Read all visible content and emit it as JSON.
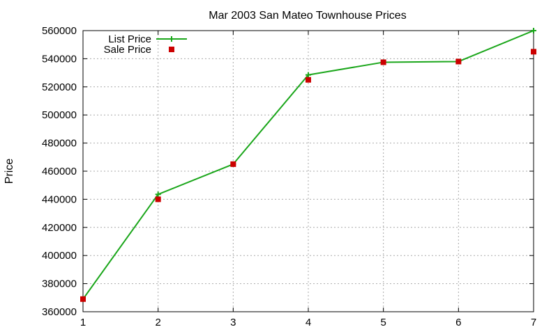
{
  "chart_data": {
    "type": "line",
    "title": "Mar 2003 San Mateo Townhouse Prices",
    "xlabel": "",
    "ylabel": "Price",
    "x": [
      1,
      2,
      3,
      4,
      5,
      6,
      7
    ],
    "xlim": [
      1,
      7
    ],
    "ylim": [
      360000,
      560000
    ],
    "yticks": [
      360000,
      380000,
      400000,
      420000,
      440000,
      460000,
      480000,
      500000,
      520000,
      540000,
      560000
    ],
    "xticks": [
      1,
      2,
      3,
      4,
      5,
      6,
      7
    ],
    "grid": true,
    "legend_position": "top-left",
    "series": [
      {
        "name": "List Price",
        "style": "line-with-plus-markers",
        "color": "#1aa61a",
        "values": [
          369000,
          443500,
          465000,
          528500,
          537500,
          538000,
          560000
        ]
      },
      {
        "name": "Sale Price",
        "style": "square-markers",
        "color": "#cc0000",
        "values": [
          369000,
          440000,
          465000,
          525000,
          537500,
          538000,
          545000
        ]
      }
    ]
  }
}
